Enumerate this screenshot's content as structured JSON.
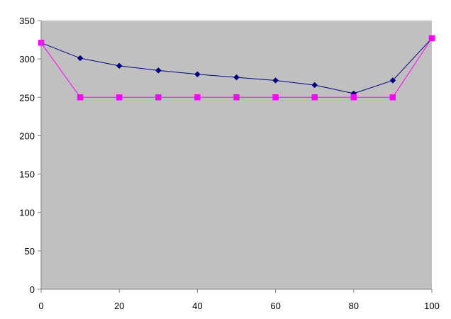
{
  "chart_data": {
    "type": "line",
    "title": "",
    "xlabel": "",
    "ylabel": "",
    "x": [
      0,
      10,
      20,
      30,
      40,
      50,
      60,
      70,
      80,
      90,
      100
    ],
    "xlim": [
      0,
      100
    ],
    "ylim": [
      0,
      350
    ],
    "x_ticks": [
      "0",
      "20",
      "40",
      "60",
      "80",
      "100"
    ],
    "y_ticks": [
      "0",
      "50",
      "100",
      "150",
      "200",
      "250",
      "300",
      "350"
    ],
    "grid": false,
    "legend": "none",
    "plot_background": "#c0c0c0",
    "axis_color": "#808080",
    "series": [
      {
        "values": [
          321,
          301,
          291,
          285,
          280,
          276,
          272,
          266,
          255,
          272,
          327
        ],
        "color": "#000080",
        "marker": "diamond"
      },
      {
        "values": [
          321,
          250,
          250,
          250,
          250,
          250,
          250,
          250,
          250,
          250,
          327
        ],
        "color": "#ff00ff",
        "marker": "square"
      }
    ]
  }
}
